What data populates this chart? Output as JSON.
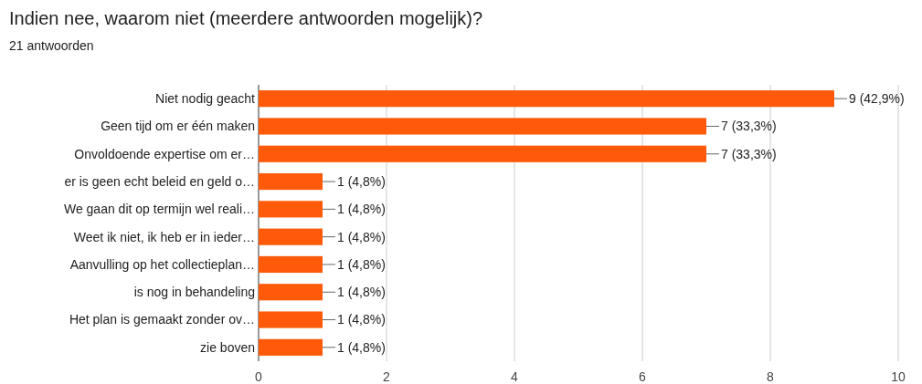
{
  "chart_data": {
    "type": "bar",
    "orientation": "horizontal",
    "title": "Indien nee, waarom niet (meerdere antwoorden mogelijk)?",
    "subtitle": "21 antwoorden",
    "categories": [
      "Niet nodig geacht",
      "Geen tijd om er één maken",
      "Onvoldoende expertise om er…",
      "er is geen echt beleid en geld o…",
      "We gaan dit op termijn wel reali…",
      "Weet ik niet, ik heb er in ieder…",
      "Aanvulling op het collectieplan…",
      "is nog in behandeling",
      "Het plan is gemaakt zonder ov…",
      "zie boven"
    ],
    "values": [
      9,
      7,
      7,
      1,
      1,
      1,
      1,
      1,
      1,
      1
    ],
    "value_labels": [
      "9 (42,9%)",
      "7 (33,3%)",
      "7 (33,3%)",
      "1 (4,8%)",
      "1 (4,8%)",
      "1 (4,8%)",
      "1 (4,8%)",
      "1 (4,8%)",
      "1 (4,8%)",
      "1 (4,8%)"
    ],
    "color": "#ff5a0a",
    "xlim": [
      0,
      10
    ],
    "xticks": [
      0,
      2,
      4,
      6,
      8,
      10
    ],
    "grid": "x"
  }
}
